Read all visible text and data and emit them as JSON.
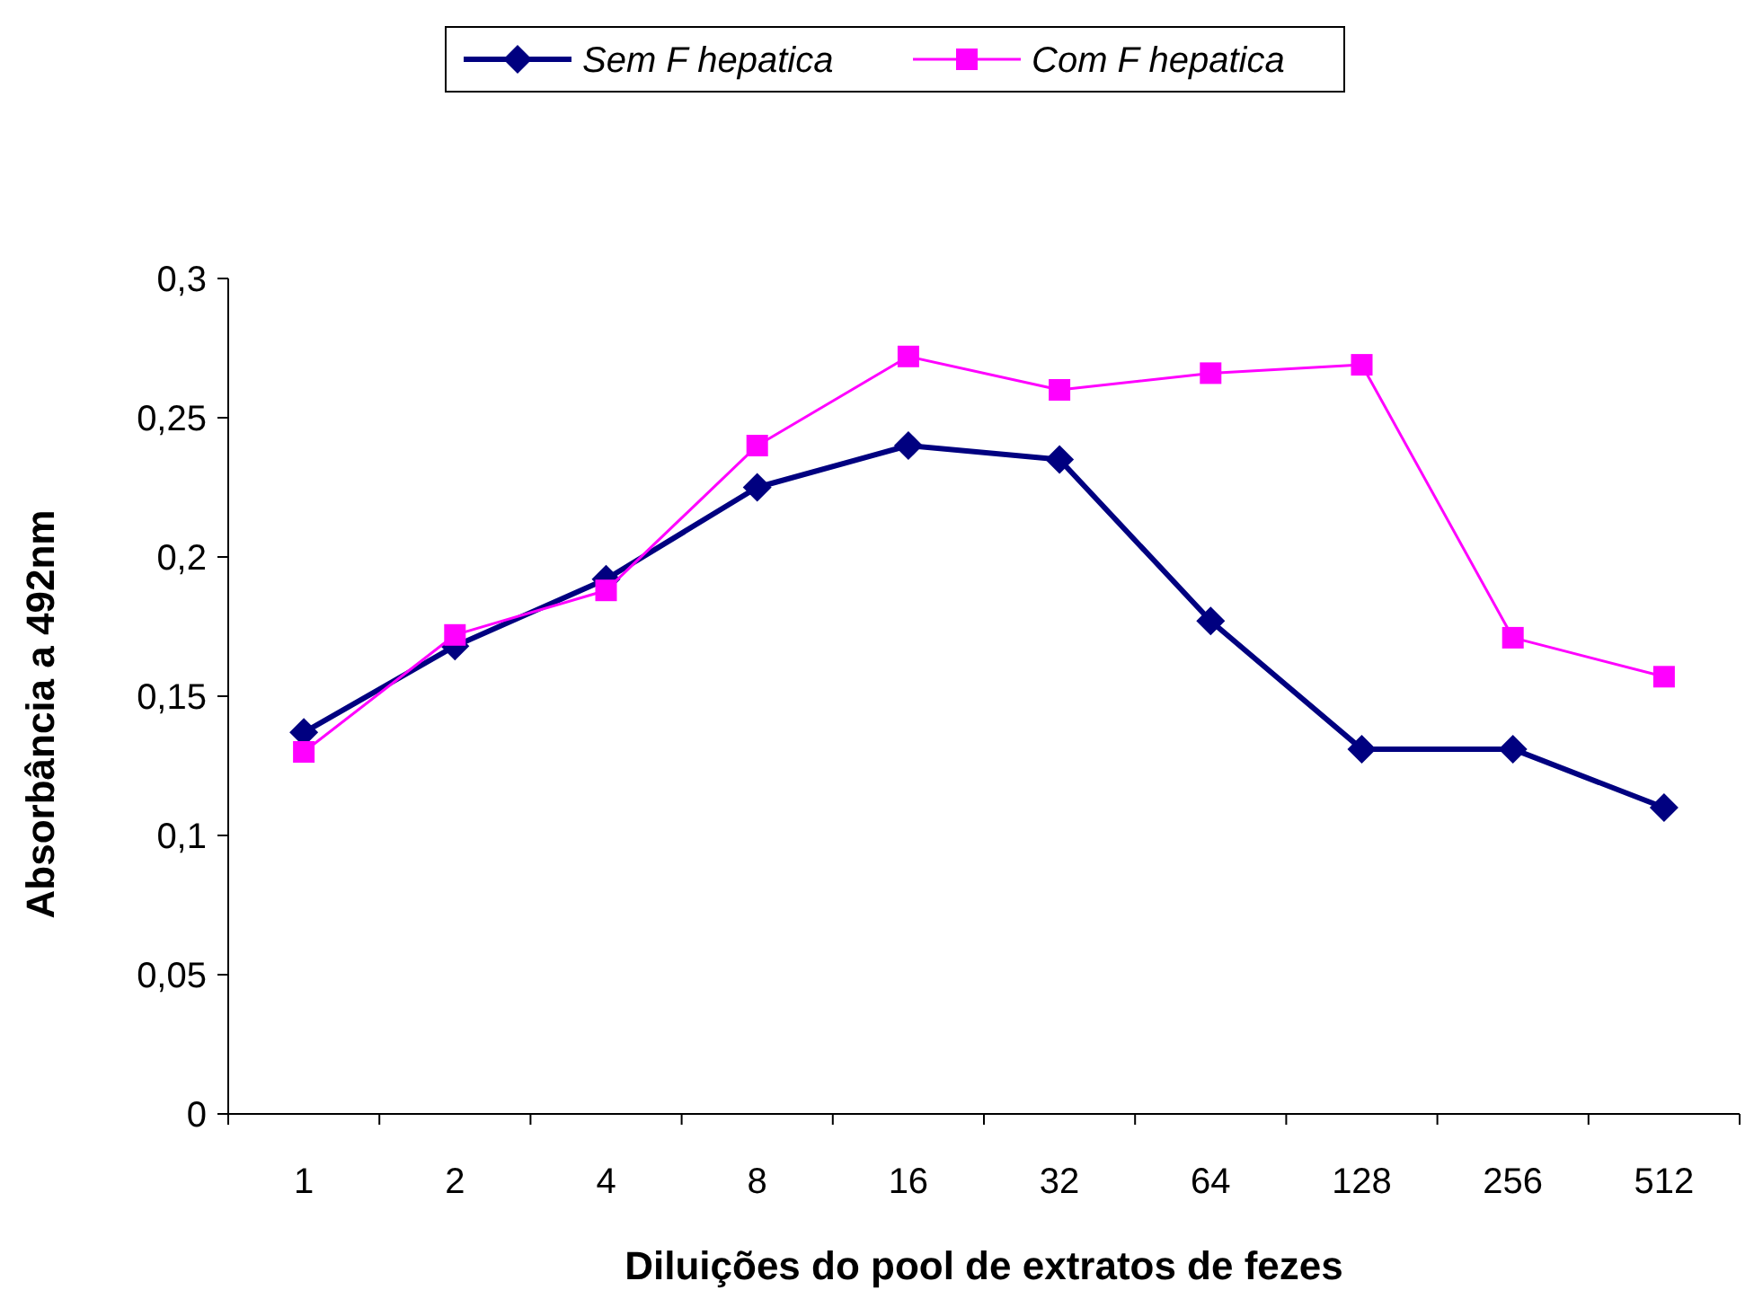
{
  "chart_data": {
    "type": "line",
    "xlabel": "Diluições do pool de extratos de fezes",
    "ylabel": "Absorbância a 492nm",
    "categories": [
      "1",
      "2",
      "4",
      "8",
      "16",
      "32",
      "64",
      "128",
      "256",
      "512"
    ],
    "series": [
      {
        "name": "Sem F hepatica",
        "color": "#000080",
        "marker": "diamond",
        "values": [
          0.137,
          0.168,
          0.192,
          0.225,
          0.24,
          0.235,
          0.177,
          0.131,
          0.131,
          0.11
        ]
      },
      {
        "name": "Com F hepatica",
        "color": "#ff00ff",
        "marker": "square",
        "values": [
          0.13,
          0.172,
          0.188,
          0.24,
          0.272,
          0.26,
          0.266,
          0.269,
          0.171,
          0.157
        ]
      }
    ],
    "ylim": [
      0,
      0.3
    ],
    "yticks": [
      {
        "value": 0,
        "label": "0"
      },
      {
        "value": 0.05,
        "label": "0,05"
      },
      {
        "value": 0.1,
        "label": "0,1"
      },
      {
        "value": 0.15,
        "label": "0,15"
      },
      {
        "value": 0.2,
        "label": "0,2"
      },
      {
        "value": 0.25,
        "label": "0,25"
      },
      {
        "value": 0.3,
        "label": "0,3"
      }
    ],
    "grid": false,
    "legend": "top"
  }
}
